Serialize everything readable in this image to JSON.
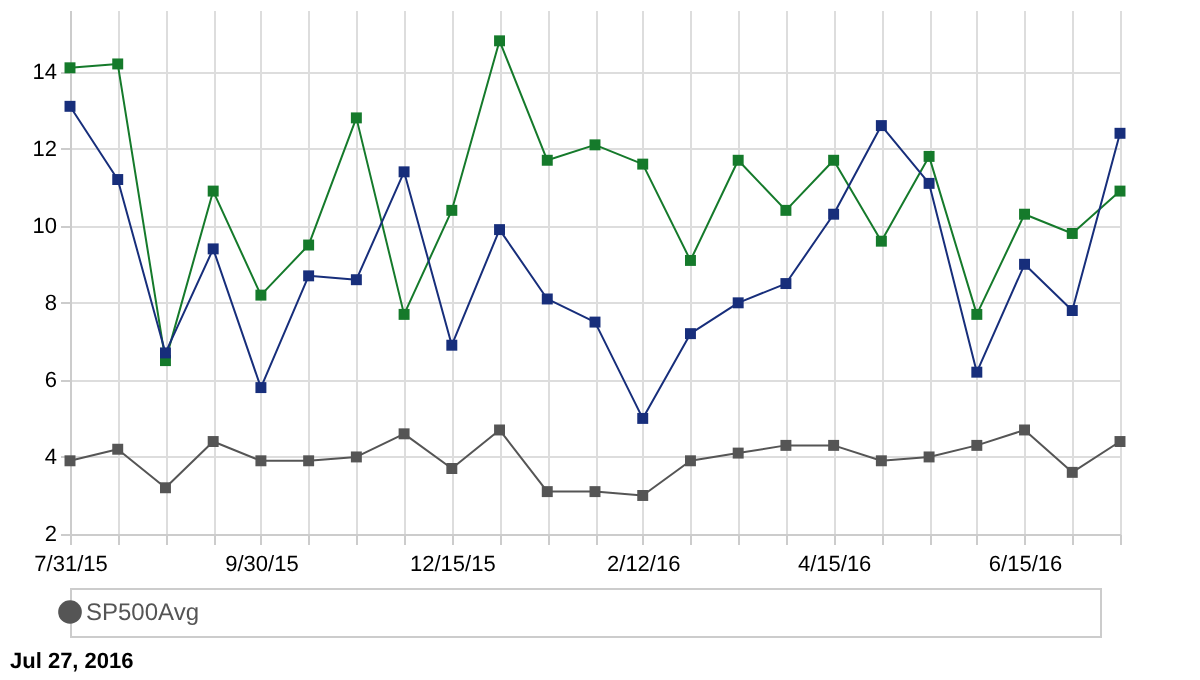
{
  "chart_data": {
    "type": "line",
    "categories": [
      "7/31/15",
      null,
      null,
      null,
      "9/30/15",
      null,
      null,
      null,
      "12/15/15",
      null,
      null,
      null,
      "2/12/16",
      null,
      null,
      null,
      "4/15/16",
      null,
      null,
      null,
      "6/15/16",
      null,
      null
    ],
    "series": [
      {
        "color": "#172e7b",
        "values": [
          13.1,
          11.2,
          6.7,
          9.4,
          5.8,
          8.7,
          8.6,
          11.4,
          6.9,
          9.9,
          8.1,
          7.5,
          5.0,
          7.2,
          8.0,
          8.5,
          10.3,
          12.6,
          11.1,
          6.2,
          9.0,
          7.8,
          12.4
        ]
      },
      {
        "color": "#157a2b",
        "values": [
          14.1,
          14.2,
          6.5,
          10.9,
          8.2,
          9.5,
          12.8,
          7.7,
          10.4,
          14.8,
          11.7,
          12.1,
          11.6,
          9.1,
          11.7,
          10.4,
          11.7,
          9.6,
          11.8,
          7.7,
          10.3,
          9.8,
          10.9
        ]
      },
      {
        "name": "SP500Avg",
        "color": "#555555",
        "values": [
          3.9,
          4.2,
          3.2,
          4.4,
          3.9,
          3.9,
          4.0,
          4.6,
          3.7,
          4.7,
          3.1,
          3.1,
          3.0,
          3.9,
          4.1,
          4.3,
          4.3,
          3.9,
          4.0,
          4.3,
          4.7,
          3.6,
          4.4
        ]
      }
    ],
    "ylim": [
      2,
      15.6
    ],
    "yticks": [
      2,
      4,
      6,
      8,
      10,
      12,
      14
    ],
    "grid": true,
    "marker": "square",
    "line_style": "solid",
    "legend": "bottom",
    "annotations": [
      "Jul 27, 2016"
    ]
  }
}
